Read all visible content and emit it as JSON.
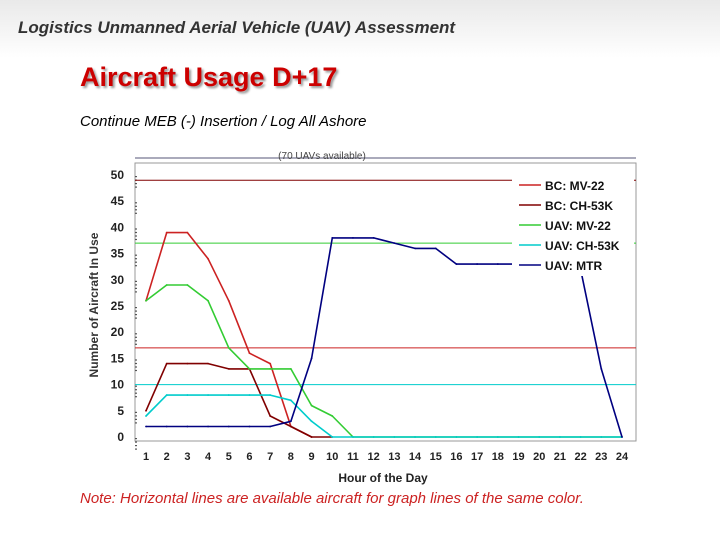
{
  "header": {
    "title": "Logistics Unmanned Aerial Vehicle (UAV) Assessment"
  },
  "slide": {
    "title": "Aircraft Usage D+17",
    "subtitle": "Continue MEB (-) Insertion / Log All Ashore",
    "note": "Note: Horizontal lines are available aircraft for graph lines of the same color."
  },
  "chart_data": {
    "type": "line",
    "annotation": "(70 UAVs available)",
    "xlabel": "Hour of the Day",
    "ylabel": "Number of Aircraft In Use",
    "xlim": [
      0.5,
      24.5
    ],
    "ylim": [
      0,
      50
    ],
    "x_ticks": [
      1,
      2,
      3,
      4,
      5,
      6,
      7,
      8,
      9,
      10,
      11,
      12,
      13,
      14,
      15,
      16,
      17,
      18,
      19,
      20,
      21,
      22,
      23,
      24
    ],
    "y_ticks": [
      0,
      5,
      10,
      15,
      20,
      25,
      30,
      35,
      40,
      45,
      50
    ],
    "legend_position": "top-right",
    "grid": false,
    "series": [
      {
        "name": "BC: MV-22",
        "color": "#cc2222",
        "available": 17,
        "x": [
          1,
          2,
          3,
          4,
          5,
          6,
          7,
          8,
          9
        ],
        "y": [
          26,
          39,
          39,
          34,
          26,
          16,
          14,
          2,
          0
        ]
      },
      {
        "name": "BC: CH-53K",
        "color": "#800000",
        "available": 49,
        "x": [
          1,
          2,
          3,
          4,
          5,
          6,
          7,
          8,
          9,
          10
        ],
        "y": [
          5,
          14,
          14,
          14,
          13,
          13,
          4,
          2,
          0,
          0
        ]
      },
      {
        "name": "UAV: MV-22",
        "color": "#33cc33",
        "available": 37,
        "x": [
          1,
          2,
          3,
          4,
          5,
          6,
          7,
          8,
          9,
          10,
          11,
          12,
          13,
          14,
          15,
          16,
          17,
          18,
          19,
          20,
          21,
          22,
          23,
          24
        ],
        "y": [
          26,
          29,
          29,
          26,
          17,
          13,
          13,
          13,
          6,
          4,
          0,
          0,
          0,
          0,
          0,
          0,
          0,
          0,
          0,
          0,
          0,
          0,
          0,
          0
        ]
      },
      {
        "name": "UAV: CH-53K",
        "color": "#00cccc",
        "available": 10,
        "x": [
          1,
          2,
          3,
          4,
          5,
          6,
          7,
          8,
          9,
          10,
          11,
          12,
          13,
          14,
          15,
          16,
          17,
          18,
          19,
          20,
          21,
          22,
          23,
          24
        ],
        "y": [
          4,
          8,
          8,
          8,
          8,
          8,
          8,
          7,
          3,
          0,
          0,
          0,
          0,
          0,
          0,
          0,
          0,
          0,
          0,
          0,
          0,
          0,
          0,
          0
        ]
      },
      {
        "name": "UAV: MTR",
        "color": "#000080",
        "x": [
          1,
          2,
          3,
          4,
          5,
          6,
          7,
          8,
          9,
          10,
          11,
          12,
          13,
          14,
          15,
          16,
          17,
          18,
          19,
          20,
          21,
          22,
          23,
          24
        ],
        "y": [
          2,
          2,
          2,
          2,
          2,
          2,
          2,
          3,
          15,
          38,
          38,
          38,
          37,
          36,
          36,
          33,
          33,
          33,
          33,
          33,
          33,
          32,
          13,
          0
        ]
      }
    ]
  }
}
